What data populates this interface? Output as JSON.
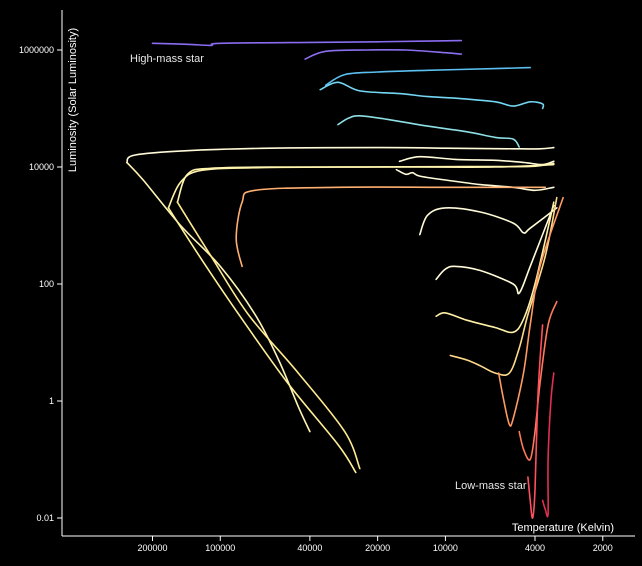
{
  "chart_data": {
    "type": "line",
    "title": "",
    "xlabel": "Temperature (Kelvin)",
    "ylabel": "Luminosity (Solar Luminosity)",
    "x_scale": "log",
    "x_reversed": true,
    "y_scale": "log",
    "xlim": [
      400000,
      1500
    ],
    "ylim": [
      0.005,
      4000000
    ],
    "x_ticks": [
      {
        "value": 200000,
        "label": "200000"
      },
      {
        "value": 100000,
        "label": "100000"
      },
      {
        "value": 40000,
        "label": "40000"
      },
      {
        "value": 20000,
        "label": "20000"
      },
      {
        "value": 10000,
        "label": "10000"
      },
      {
        "value": 4000,
        "label": "4000"
      },
      {
        "value": 2000,
        "label": "2000"
      }
    ],
    "y_ticks": [
      {
        "value": 1000000,
        "label": "1000000"
      },
      {
        "value": 10000,
        "label": "10000"
      },
      {
        "value": 100,
        "label": "100"
      },
      {
        "value": 1,
        "label": "1"
      },
      {
        "value": 0.01,
        "label": "0.01"
      }
    ],
    "annotations": [
      {
        "text": "High-mass star",
        "x": 190000,
        "y": 650000
      },
      {
        "text": "Low-mass star",
        "x": 5200,
        "y": 0.05
      }
    ],
    "grid": false,
    "legend": "none",
    "series": [
      {
        "color": "#8a6cf0",
        "points": [
          [
            200000,
            1300000
          ],
          [
            140000,
            1250000
          ],
          [
            110000,
            1200000
          ],
          [
            100000,
            1300000
          ],
          [
            40000,
            1350000
          ],
          [
            20000,
            1380000
          ],
          [
            12000,
            1420000
          ],
          [
            8500,
            1450000
          ]
        ]
      },
      {
        "color": "#8c6ff0",
        "points": [
          [
            42000,
            700000
          ],
          [
            34000,
            950000
          ],
          [
            22000,
            1000000
          ],
          [
            15000,
            1000000
          ],
          [
            10000,
            900000
          ],
          [
            8500,
            850000
          ]
        ]
      },
      {
        "color": "#5bbff0",
        "points": [
          [
            34000,
            250000
          ],
          [
            28000,
            380000
          ],
          [
            20000,
            420000
          ],
          [
            12000,
            450000
          ],
          [
            6000,
            480000
          ],
          [
            4200,
            500000
          ]
        ]
      },
      {
        "color": "#74d6f2",
        "points": [
          [
            36000,
            210000
          ],
          [
            30000,
            280000
          ],
          [
            24000,
            200000
          ],
          [
            16000,
            180000
          ],
          [
            12000,
            160000
          ],
          [
            9000,
            150000
          ],
          [
            6000,
            130000
          ],
          [
            5000,
            110000
          ],
          [
            4200,
            130000
          ],
          [
            3700,
            120000
          ],
          [
            3700,
            100000
          ]
        ]
      },
      {
        "color": "#8ee0e6",
        "points": [
          [
            30000,
            53000
          ],
          [
            27000,
            68000
          ],
          [
            24000,
            75000
          ],
          [
            18000,
            65000
          ],
          [
            12000,
            50000
          ],
          [
            8000,
            40000
          ],
          [
            6000,
            32000
          ],
          [
            5000,
            30000
          ],
          [
            4700,
            22000
          ]
        ]
      },
      {
        "color": "#fffbd9",
        "points": [
          [
            260000,
            12000
          ],
          [
            240000,
            16000
          ],
          [
            140000,
            19000
          ],
          [
            60000,
            21000
          ],
          [
            20000,
            21500
          ],
          [
            10000,
            21000
          ],
          [
            5000,
            20500
          ],
          [
            3800,
            20500
          ],
          [
            3300,
            21500
          ]
        ]
      },
      {
        "color": "#fff4b5",
        "points": [
          [
            260000,
            12000
          ],
          [
            220000,
            6000
          ],
          [
            150000,
            1000
          ],
          [
            100000,
            200
          ],
          [
            70000,
            30
          ],
          [
            55000,
            5
          ],
          [
            45000,
            0.8
          ],
          [
            40000,
            0.3
          ]
        ]
      },
      {
        "color": "#fffbd9",
        "points": [
          [
            16000,
            12500
          ],
          [
            13000,
            15000
          ],
          [
            9000,
            13500
          ],
          [
            6000,
            13000
          ],
          [
            4500,
            12000
          ],
          [
            3700,
            11000
          ],
          [
            3300,
            12500
          ]
        ]
      },
      {
        "color": "#fff2a8",
        "points": [
          [
            170000,
            2000
          ],
          [
            150000,
            5500
          ],
          [
            120000,
            8800
          ],
          [
            60000,
            9800
          ],
          [
            20000,
            10000
          ],
          [
            8000,
            10200
          ],
          [
            4200,
            10200
          ],
          [
            3300,
            11500
          ]
        ]
      },
      {
        "color": "#ffef99",
        "points": [
          [
            170000,
            2000
          ],
          [
            120000,
            250
          ],
          [
            80000,
            25
          ],
          [
            50000,
            2
          ],
          [
            30000,
            0.18
          ],
          [
            25000,
            0.06
          ]
        ]
      },
      {
        "color": "#fff5b0",
        "points": [
          [
            155000,
            2500
          ],
          [
            140000,
            7500
          ],
          [
            110000,
            9500
          ],
          [
            50000,
            10000
          ],
          [
            15000,
            10000
          ],
          [
            6000,
            10000
          ],
          [
            3300,
            11000
          ]
        ]
      },
      {
        "color": "#ffea90",
        "points": [
          [
            155000,
            2500
          ],
          [
            110000,
            300
          ],
          [
            75000,
            30
          ],
          [
            45000,
            3
          ],
          [
            28000,
            0.3
          ],
          [
            24000,
            0.07
          ]
        ]
      },
      {
        "color": "#fffbd9",
        "points": [
          [
            16500,
            9000
          ],
          [
            15000,
            7500
          ],
          [
            14000,
            8000
          ],
          [
            13000,
            7000
          ],
          [
            10000,
            6000
          ],
          [
            7000,
            5000
          ],
          [
            5000,
            4500
          ],
          [
            4000,
            4000
          ],
          [
            3300,
            4500
          ]
        ]
      },
      {
        "color": "#fffbd9",
        "points": [
          [
            13000,
            700
          ],
          [
            12000,
            1500
          ],
          [
            10000,
            2000
          ],
          [
            7000,
            1700
          ],
          [
            5000,
            1100
          ],
          [
            4500,
            750
          ],
          [
            4200,
            900
          ],
          [
            3200,
            2000
          ]
        ]
      },
      {
        "color": "#fffbd9",
        "points": [
          [
            11000,
            120
          ],
          [
            10000,
            180
          ],
          [
            9000,
            200
          ],
          [
            7000,
            170
          ],
          [
            5000,
            100
          ],
          [
            4700,
            70
          ],
          [
            4200,
            200
          ],
          [
            3300,
            2200
          ]
        ]
      },
      {
        "color": "#fff0a8",
        "points": [
          [
            11000,
            28
          ],
          [
            10000,
            32
          ],
          [
            8000,
            24
          ],
          [
            6000,
            18
          ],
          [
            5000,
            15
          ],
          [
            4500,
            25
          ],
          [
            4000,
            100
          ],
          [
            3300,
            2500
          ]
        ]
      },
      {
        "color": "#ffd98a",
        "points": [
          [
            9500,
            6
          ],
          [
            8000,
            5
          ],
          [
            7000,
            4
          ],
          [
            6000,
            3
          ],
          [
            5200,
            3
          ],
          [
            4700,
            8
          ],
          [
            4300,
            30
          ],
          [
            3600,
            300
          ],
          [
            3200,
            3000
          ]
        ]
      },
      {
        "color": "#ffb070",
        "points": [
          [
            3600,
            4500
          ],
          [
            4600,
            4500
          ],
          [
            10000,
            4500
          ],
          [
            30000,
            4500
          ],
          [
            70000,
            4000
          ],
          [
            80000,
            2500
          ],
          [
            85000,
            600
          ],
          [
            80000,
            200
          ]
        ]
      },
      {
        "color": "#ff9a62",
        "points": [
          [
            5800,
            3
          ],
          [
            5500,
            1
          ],
          [
            5200,
            0.4
          ],
          [
            5000,
            0.5
          ],
          [
            4500,
            3
          ],
          [
            4200,
            20
          ],
          [
            3800,
            200
          ],
          [
            3000,
            3000
          ]
        ]
      },
      {
        "color": "#ff7a5a",
        "points": [
          [
            4700,
            0.3
          ],
          [
            4500,
            0.15
          ],
          [
            4200,
            0.1
          ],
          [
            4000,
            0.3
          ],
          [
            3800,
            2
          ],
          [
            3500,
            20
          ],
          [
            3200,
            50
          ]
        ]
      },
      {
        "color": "#ff5060",
        "points": [
          [
            4300,
            0.05
          ],
          [
            4200,
            0.02
          ],
          [
            4100,
            0.01
          ],
          [
            4000,
            0.03
          ],
          [
            3900,
            0.8
          ],
          [
            3800,
            5
          ],
          [
            3700,
            20
          ]
        ]
      },
      {
        "color": "#e03050",
        "points": [
          [
            3700,
            0.02
          ],
          [
            3600,
            0.014
          ],
          [
            3500,
            0.012
          ],
          [
            3500,
            0.1
          ],
          [
            3400,
            1
          ],
          [
            3300,
            3
          ]
        ]
      }
    ]
  }
}
